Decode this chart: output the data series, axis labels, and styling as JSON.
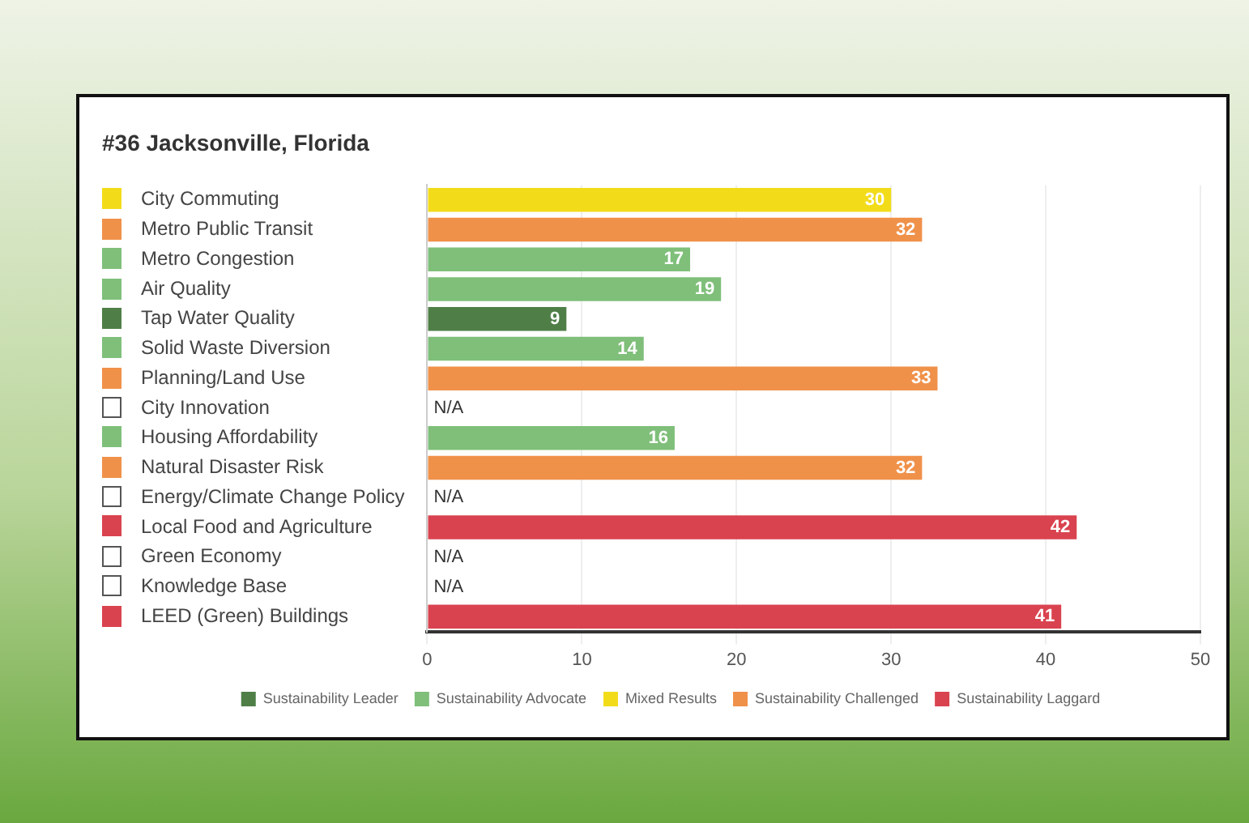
{
  "chart_data": {
    "type": "bar",
    "orientation": "horizontal",
    "stacked": true,
    "title": "#36 Jacksonville, Florida",
    "categories": [
      "City Commuting",
      "Metro Public Transit",
      "Metro Congestion",
      "Air Quality",
      "Tap Water Quality",
      "Solid Waste Diversion",
      "Planning/Land Use",
      "City Innovation",
      "Housing Affordability",
      "Natural Disaster Risk",
      "Energy/Climate Change Policy",
      "Local Food and Agriculture",
      "Green Economy",
      "Knowledge Base",
      "LEED (Green) Buildings"
    ],
    "series": [
      {
        "name": "Sustainability Leader",
        "color": "#4f7f47",
        "values": [
          null,
          null,
          null,
          null,
          9,
          null,
          null,
          null,
          null,
          null,
          null,
          null,
          null,
          null,
          null
        ],
        "value_labels": [
          null,
          null,
          null,
          null,
          "9",
          null,
          null,
          "N/A",
          null,
          null,
          "N/A",
          null,
          "N/A",
          "N/A",
          null
        ]
      },
      {
        "name": "Sustainability Advocate",
        "color": "#7fbf7a",
        "values": [
          null,
          null,
          17,
          19,
          null,
          14,
          null,
          null,
          16,
          null,
          null,
          null,
          null,
          null,
          null
        ]
      },
      {
        "name": "Mixed Results",
        "color": "#f2dc1a",
        "values": [
          30,
          null,
          null,
          null,
          null,
          null,
          null,
          null,
          null,
          null,
          null,
          null,
          null,
          null,
          null
        ]
      },
      {
        "name": "Sustainability Challenged",
        "color": "#f0914a",
        "values": [
          null,
          32,
          null,
          null,
          null,
          null,
          33,
          null,
          null,
          32,
          null,
          null,
          null,
          null,
          null
        ]
      },
      {
        "name": "Sustainability Laggard",
        "color": "#d9434f",
        "values": [
          null,
          null,
          null,
          null,
          null,
          null,
          null,
          null,
          null,
          null,
          null,
          42,
          null,
          null,
          41
        ]
      }
    ],
    "xlim": [
      0,
      50
    ],
    "xticks": [
      0,
      10,
      20,
      30,
      40,
      50
    ],
    "grid": "x",
    "legend": "bottom",
    "data_labels": true
  }
}
